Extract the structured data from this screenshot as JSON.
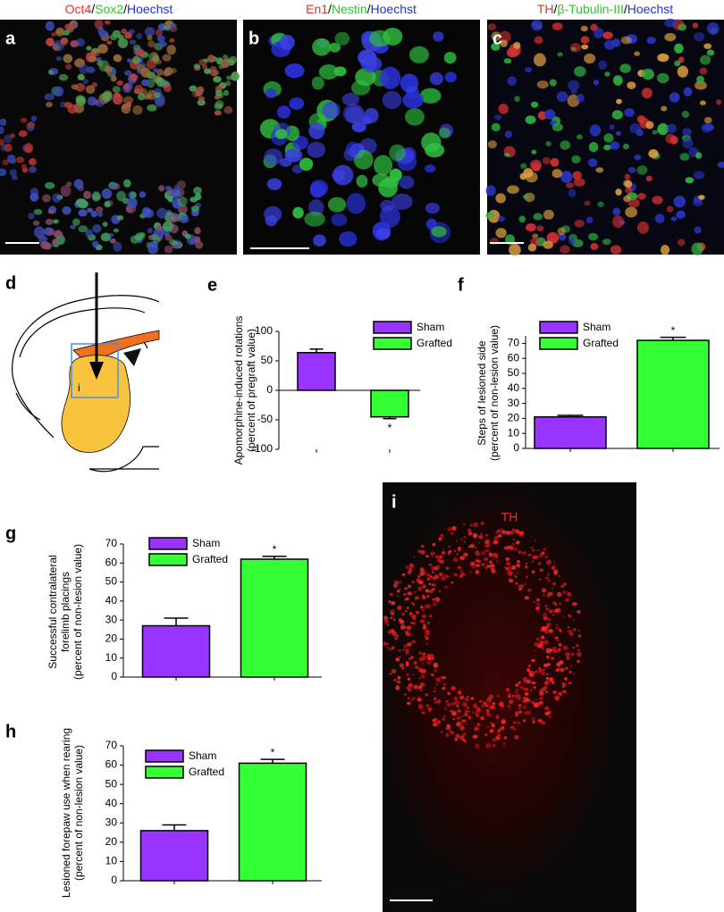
{
  "panels": {
    "a": {
      "letter": "a",
      "title": [
        "Oct4",
        "/",
        "Sox2",
        "/",
        "Hoechst"
      ]
    },
    "b": {
      "letter": "b",
      "title": [
        "En1",
        "/",
        "Nestin",
        "/",
        "Hoechst"
      ]
    },
    "c": {
      "letter": "c",
      "title": [
        "TH",
        "/",
        "β-Tubulin-III",
        "/",
        "Hoechst"
      ]
    },
    "d": {
      "letter": "d",
      "inset": "i"
    },
    "i": {
      "letter": "i",
      "title": "TH"
    }
  },
  "chart_data": [
    {
      "type": "bar",
      "panel": "e",
      "ylabel": [
        "Apomorphine-induced rotations",
        "(percent of pregraft value)"
      ],
      "series": [
        {
          "name": "Sham",
          "color": "#9933ff",
          "values": [
            64
          ],
          "errors": [
            6
          ]
        },
        {
          "name": "Grafted",
          "color": "#33ff33",
          "values": [
            -45
          ],
          "errors": [
            3
          ]
        }
      ],
      "annotation": "*",
      "ylim": [
        -100,
        100
      ],
      "yticks": [
        -100,
        -50,
        0,
        50,
        100
      ]
    },
    {
      "type": "bar",
      "panel": "f",
      "ylabel": [
        "Steps of lesioned side",
        "(percent of non-lesion value)"
      ],
      "series": [
        {
          "name": "Sham",
          "color": "#9933ff",
          "values": [
            21
          ],
          "errors": [
            1
          ]
        },
        {
          "name": "Grafted",
          "color": "#33ff33",
          "values": [
            72
          ],
          "errors": [
            2
          ]
        }
      ],
      "annotation": "*",
      "ylim": [
        0,
        75
      ],
      "yticks": [
        0,
        10,
        20,
        30,
        40,
        50,
        60,
        70
      ]
    },
    {
      "type": "bar",
      "panel": "g",
      "ylabel": [
        "Successful contralateral",
        "forelimb placings",
        "(percent of non-lesion value)"
      ],
      "series": [
        {
          "name": "Sham",
          "color": "#9933ff",
          "values": [
            27
          ],
          "errors": [
            4
          ]
        },
        {
          "name": "Grafted",
          "color": "#33ff33",
          "values": [
            62
          ],
          "errors": [
            1.5
          ]
        }
      ],
      "annotation": "*",
      "ylim": [
        0,
        70
      ],
      "yticks": [
        0,
        10,
        20,
        30,
        40,
        50,
        60,
        70
      ]
    },
    {
      "type": "bar",
      "panel": "h",
      "ylabel": [
        "Lesioned forepaw use when rearing",
        "(percent of non-lesion value)"
      ],
      "series": [
        {
          "name": "Sham",
          "color": "#9933ff",
          "values": [
            26
          ],
          "errors": [
            3
          ]
        },
        {
          "name": "Grafted",
          "color": "#33ff33",
          "values": [
            61
          ],
          "errors": [
            2
          ]
        }
      ],
      "annotation": "*",
      "ylim": [
        0,
        70
      ],
      "yticks": [
        0,
        10,
        20,
        30,
        40,
        50,
        60,
        70
      ]
    }
  ]
}
